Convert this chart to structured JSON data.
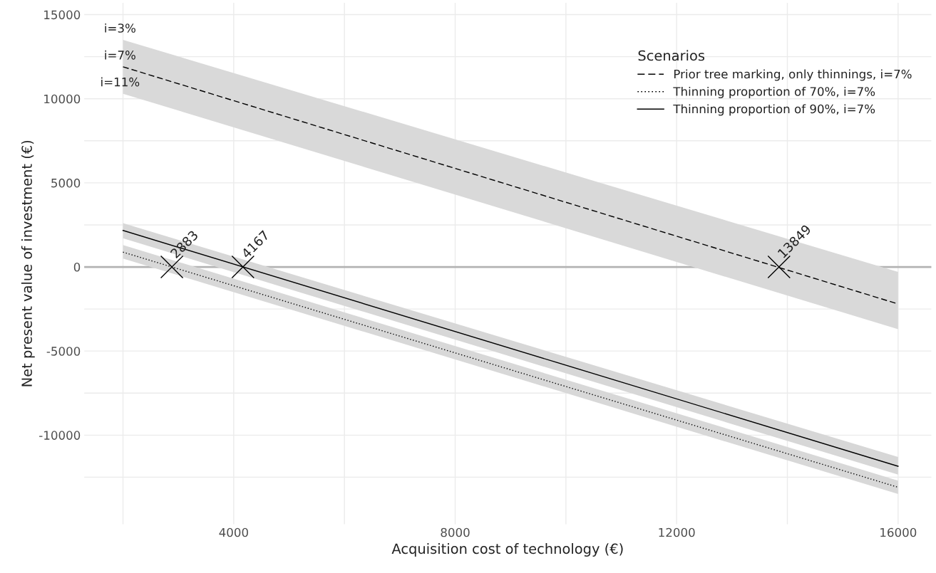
{
  "chart_data": {
    "type": "line",
    "xlabel": "Acquisition cost of technology (€)",
    "ylabel": "Net present value of investment (€)",
    "legend_title": "Scenarios",
    "legend": "top right",
    "grid": true,
    "xlim": [
      1300,
      16600
    ],
    "ylim": [
      -15300,
      15700
    ],
    "xticks": [
      {
        "value": 2000,
        "label": null
      },
      4000,
      {
        "value": 6000,
        "label": null
      },
      8000,
      {
        "value": 10000,
        "label": null
      },
      12000,
      {
        "value": 14000,
        "label": null
      },
      16000
    ],
    "yticks": [
      {
        "value": -12500,
        "label": null
      },
      -10000,
      {
        "value": -7500,
        "label": null
      },
      -5000,
      {
        "value": -2500,
        "label": null
      },
      0,
      {
        "value": 2500,
        "label": null
      },
      5000,
      {
        "value": 7500,
        "label": null
      },
      10000,
      {
        "value": 12500,
        "label": null
      },
      15000
    ],
    "ref_lines": [
      {
        "axis": "y",
        "value": 0,
        "color": "#b3b3b3"
      }
    ],
    "series": [
      {
        "name": "Prior tree marking, only thinnings, i=7%",
        "color": "#000000",
        "line_style": "dashed",
        "x": [
          2000,
          16000
        ],
        "values": [
          11900,
          -2200
        ],
        "lower": [
          10300,
          -3700
        ],
        "upper": [
          13500,
          -300
        ]
      },
      {
        "name": "Thinning proportion of 70%, i=7%",
        "color": "#000000",
        "line_style": "dotted",
        "x": [
          2000,
          16000
        ],
        "values": [
          880,
          -13100
        ],
        "lower": [
          500,
          -13500
        ],
        "upper": [
          1300,
          -12700
        ]
      },
      {
        "name": "Thinning proportion of 90%, i=7%",
        "color": "#000000",
        "line_style": "solid",
        "x": [
          2000,
          16000
        ],
        "values": [
          2170,
          -11850
        ],
        "lower": [
          1700,
          -12350
        ],
        "upper": [
          2600,
          -11300
        ]
      },
      {
        "type": "scatter",
        "marker": "cross",
        "color": "#000000",
        "x": [
          2883,
          4167,
          13849
        ],
        "values": [
          0,
          0,
          0
        ]
      }
    ],
    "annotations": [
      {
        "text": "i=3%",
        "x": 2000,
        "y": 13500
      },
      {
        "text": "i=7%",
        "x": 2000,
        "y": 11900
      },
      {
        "text": "i=11%",
        "x": 2000,
        "y": 10300
      },
      {
        "text": "2883",
        "x": 2883,
        "y": 0
      },
      {
        "text": "4167",
        "x": 4167,
        "y": 0
      },
      {
        "text": "13849",
        "x": 13849,
        "y": 0
      }
    ]
  }
}
